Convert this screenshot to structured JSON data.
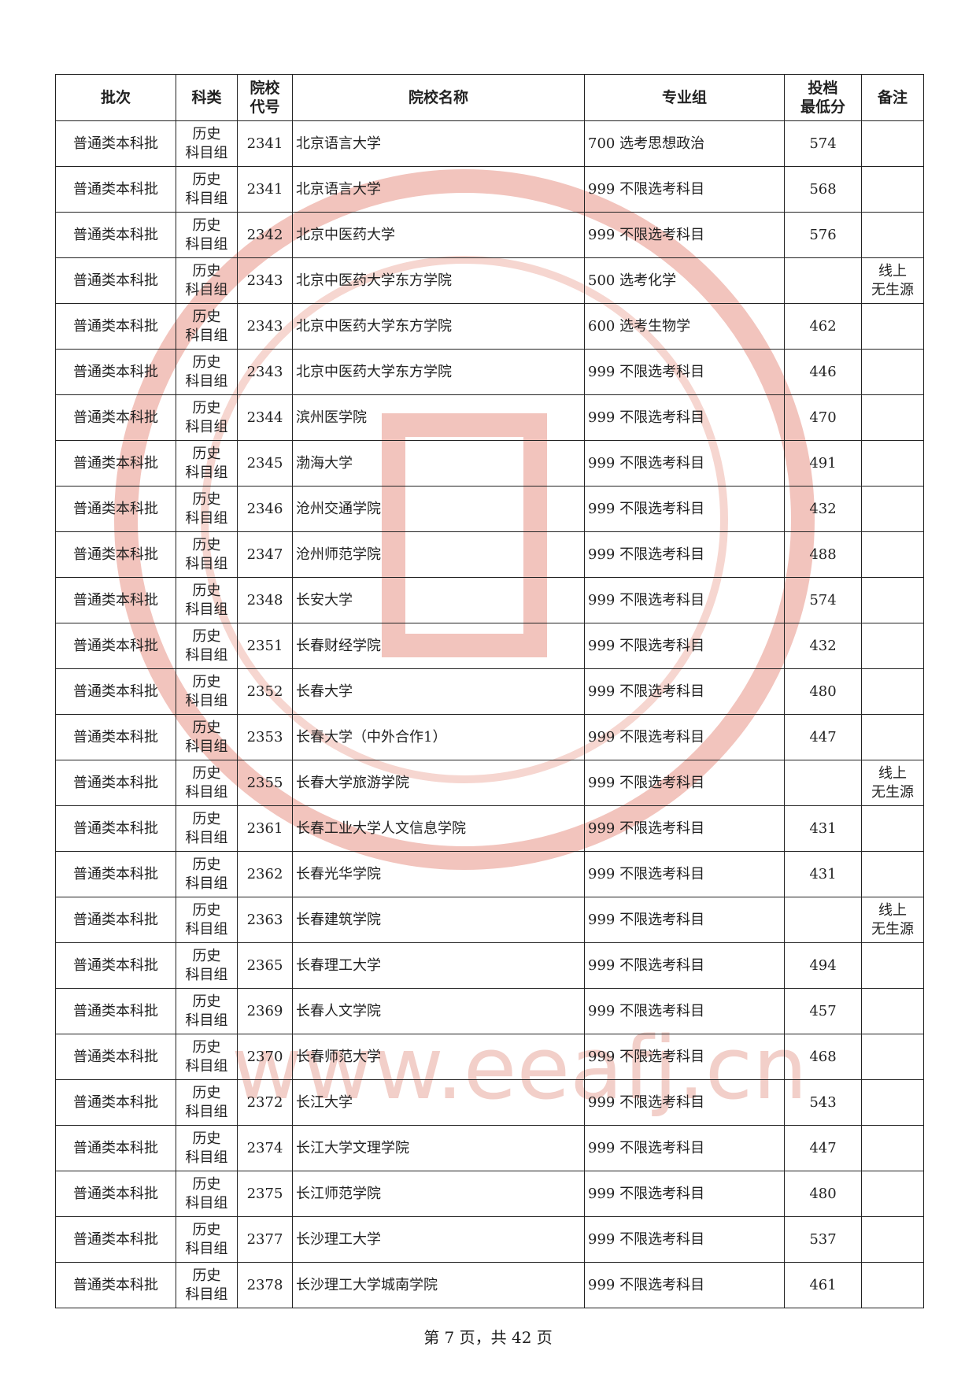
{
  "table": {
    "columns": [
      "批次",
      "科类",
      "院校\n代号",
      "院校名称",
      "专业组",
      "投档\n最低分",
      "备注"
    ],
    "rows": [
      [
        "普通类本科批",
        "历史\n科目组",
        "2341",
        "北京语言大学",
        "700 选考思想政治",
        "574",
        null
      ],
      [
        "普通类本科批",
        "历史\n科目组",
        "2341",
        "北京语言大学",
        "999 不限选考科目",
        "568",
        null
      ],
      [
        "普通类本科批",
        "历史\n科目组",
        "2342",
        "北京中医药大学",
        "999 不限选考科目",
        "576",
        null
      ],
      [
        "普通类本科批",
        "历史\n科目组",
        "2343",
        "北京中医药大学东方学院",
        "500 选考化学",
        null,
        "线上\n无生源"
      ],
      [
        "普通类本科批",
        "历史\n科目组",
        "2343",
        "北京中医药大学东方学院",
        "600 选考生物学",
        "462",
        null
      ],
      [
        "普通类本科批",
        "历史\n科目组",
        "2343",
        "北京中医药大学东方学院",
        "999 不限选考科目",
        "446",
        null
      ],
      [
        "普通类本科批",
        "历史\n科目组",
        "2344",
        "滨州医学院",
        "999 不限选考科目",
        "470",
        null
      ],
      [
        "普通类本科批",
        "历史\n科目组",
        "2345",
        "渤海大学",
        "999 不限选考科目",
        "491",
        null
      ],
      [
        "普通类本科批",
        "历史\n科目组",
        "2346",
        "沧州交通学院",
        "999 不限选考科目",
        "432",
        null
      ],
      [
        "普通类本科批",
        "历史\n科目组",
        "2347",
        "沧州师范学院",
        "999 不限选考科目",
        "488",
        null
      ],
      [
        "普通类本科批",
        "历史\n科目组",
        "2348",
        "长安大学",
        "999 不限选考科目",
        "574",
        null
      ],
      [
        "普通类本科批",
        "历史\n科目组",
        "2351",
        "长春财经学院",
        "999 不限选考科目",
        "432",
        null
      ],
      [
        "普通类本科批",
        "历史\n科目组",
        "2352",
        "长春大学",
        "999 不限选考科目",
        "480",
        null
      ],
      [
        "普通类本科批",
        "历史\n科目组",
        "2353",
        "长春大学（中外合作1）",
        "999 不限选考科目",
        "447",
        null
      ],
      [
        "普通类本科批",
        "历史\n科目组",
        "2355",
        "长春大学旅游学院",
        "999 不限选考科目",
        null,
        "线上\n无生源"
      ],
      [
        "普通类本科批",
        "历史\n科目组",
        "2361",
        "长春工业大学人文信息学院",
        "999 不限选考科目",
        "431",
        null
      ],
      [
        "普通类本科批",
        "历史\n科目组",
        "2362",
        "长春光华学院",
        "999 不限选考科目",
        "431",
        null
      ],
      [
        "普通类本科批",
        "历史\n科目组",
        "2363",
        "长春建筑学院",
        "999 不限选考科目",
        null,
        "线上\n无生源"
      ],
      [
        "普通类本科批",
        "历史\n科目组",
        "2365",
        "长春理工大学",
        "999 不限选考科目",
        "494",
        null
      ],
      [
        "普通类本科批",
        "历史\n科目组",
        "2369",
        "长春人文学院",
        "999 不限选考科目",
        "457",
        null
      ],
      [
        "普通类本科批",
        "历史\n科目组",
        "2370",
        "长春师范大学",
        "999 不限选考科目",
        "468",
        null
      ],
      [
        "普通类本科批",
        "历史\n科目组",
        "2372",
        "长江大学",
        "999 不限选考科目",
        "543",
        null
      ],
      [
        "普通类本科批",
        "历史\n科目组",
        "2374",
        "长江大学文理学院",
        "999 不限选考科目",
        "447",
        null
      ],
      [
        "普通类本科批",
        "历史\n科目组",
        "2375",
        "长江师范学院",
        "999 不限选考科目",
        "480",
        null
      ],
      [
        "普通类本科批",
        "历史\n科目组",
        "2377",
        "长沙理工大学",
        "999 不限选考科目",
        "537",
        null
      ],
      [
        "普通类本科批",
        "历史\n科目组",
        "2378",
        "长沙理工大学城南学院",
        "999 不限选考科目",
        "461",
        null
      ]
    ]
  },
  "footer": "第 7 页，共 42 页",
  "watermark": "www.eeafj.cn"
}
